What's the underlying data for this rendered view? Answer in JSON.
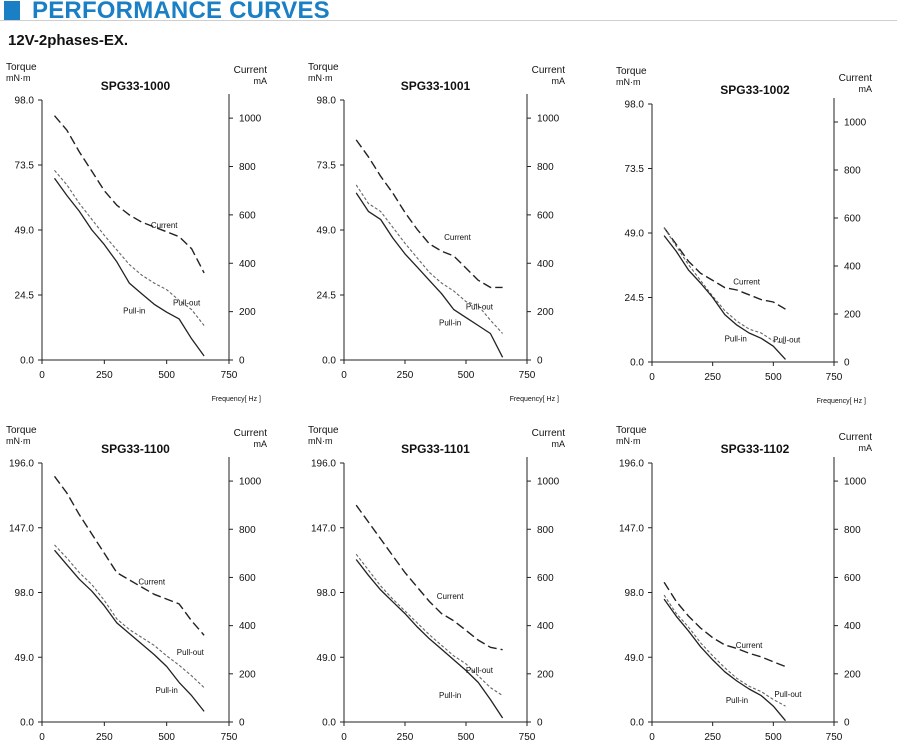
{
  "header": {
    "title": "PERFORMANCE CURVES"
  },
  "subtitle": "12V-2phases-EX.",
  "colors": {
    "accent": "#1a7fc4"
  },
  "chart_data": [
    {
      "type": "line",
      "title": "SPG33-1000",
      "ylabel_left": [
        "Torque",
        "mN·m"
      ],
      "ylabel_right": [
        "Current",
        "mA"
      ],
      "xlabel": "Frequency[ Hz ]",
      "xticks": [
        0,
        250,
        500,
        750
      ],
      "xlim": [
        0,
        750
      ],
      "yticks_left": [
        "0.0",
        "24.5",
        "49.0",
        "73.5",
        "98.0"
      ],
      "ylim_left": [
        0,
        98
      ],
      "yticks_right": [
        0,
        200,
        400,
        600,
        800,
        1000
      ],
      "ylim_right": [
        0,
        1075
      ],
      "series": [
        {
          "name": "Current",
          "axis": "right",
          "style": "dashed",
          "x": [
            50,
            100,
            150,
            200,
            250,
            300,
            350,
            400,
            450,
            500,
            550,
            600,
            650
          ],
          "y": [
            1010,
            950,
            860,
            780,
            700,
            640,
            600,
            570,
            550,
            530,
            510,
            460,
            360
          ]
        },
        {
          "name": "Pull-out",
          "axis": "left",
          "style": "dotted",
          "x": [
            50,
            100,
            150,
            200,
            250,
            300,
            350,
            400,
            450,
            500,
            550,
            600,
            650
          ],
          "y": [
            71.5,
            66,
            59,
            53,
            47,
            41.5,
            36,
            32,
            29,
            26.5,
            22.5,
            19,
            13
          ]
        },
        {
          "name": "Pull-in",
          "axis": "left",
          "style": "solid",
          "x": [
            50,
            100,
            150,
            200,
            250,
            300,
            350,
            400,
            450,
            500,
            550,
            600,
            650
          ],
          "y": [
            68.5,
            62,
            56,
            49,
            43.5,
            37,
            29,
            25,
            21,
            18,
            15.5,
            8,
            1.5
          ]
        }
      ],
      "annotations": [
        {
          "text": "Current",
          "x": 490,
          "y": 49.7
        },
        {
          "text": "Pull-out",
          "x": 580,
          "y": 20.5
        },
        {
          "text": "Pull-in",
          "x": 370,
          "y": 17.5
        }
      ]
    },
    {
      "type": "line",
      "title": "SPG33-1001",
      "ylabel_left": [
        "Torque",
        "mN·m"
      ],
      "ylabel_right": [
        "Current",
        "mA"
      ],
      "xlabel": "Frequency[ Hz ]",
      "xticks": [
        0,
        250,
        500,
        750
      ],
      "xlim": [
        0,
        750
      ],
      "yticks_left": [
        "0.0",
        "24.5",
        "49.0",
        "73.5",
        "98.0"
      ],
      "ylim_left": [
        0,
        98
      ],
      "yticks_right": [
        0,
        200,
        400,
        600,
        800,
        1000
      ],
      "ylim_right": [
        0,
        1075
      ],
      "series": [
        {
          "name": "Current",
          "axis": "right",
          "style": "dashed",
          "x": [
            50,
            100,
            150,
            200,
            250,
            300,
            350,
            400,
            450,
            500,
            550,
            600,
            650
          ],
          "y": [
            910,
            840,
            760,
            690,
            610,
            540,
            480,
            450,
            430,
            380,
            330,
            300,
            300
          ]
        },
        {
          "name": "Pull-out",
          "axis": "left",
          "style": "dotted",
          "x": [
            50,
            100,
            150,
            200,
            250,
            300,
            350,
            400,
            450,
            500,
            550,
            600,
            650
          ],
          "y": [
            66,
            59,
            56,
            50,
            44,
            38.5,
            33,
            29,
            26,
            22,
            20.5,
            15,
            10
          ]
        },
        {
          "name": "Pull-in",
          "axis": "left",
          "style": "solid",
          "x": [
            50,
            100,
            150,
            200,
            250,
            300,
            350,
            400,
            450,
            500,
            550,
            600,
            650
          ],
          "y": [
            63,
            56,
            53,
            46,
            40,
            35,
            30,
            25,
            19,
            16,
            13,
            10,
            1
          ]
        }
      ],
      "annotations": [
        {
          "text": "Current",
          "x": 465,
          "y": 45.2
        },
        {
          "text": "Pull-out",
          "x": 555,
          "y": 19
        },
        {
          "text": "Pull-in",
          "x": 435,
          "y": 13
        }
      ]
    },
    {
      "type": "line",
      "title": "SPG33-1002",
      "ylabel_left": [
        "Torque",
        "mN·m"
      ],
      "ylabel_right": [
        "Current",
        "mA"
      ],
      "xlabel": "Frequency[ Hz ]",
      "xticks": [
        0,
        250,
        500,
        750
      ],
      "xlim": [
        0,
        750
      ],
      "yticks_left": [
        "0.0",
        "24.5",
        "49.0",
        "73.5",
        "98.0"
      ],
      "ylim_left": [
        0,
        98
      ],
      "yticks_right": [
        0,
        200,
        400,
        600,
        800,
        1000
      ],
      "ylim_right": [
        0,
        1075
      ],
      "series": [
        {
          "name": "Current",
          "axis": "right",
          "style": "dashed",
          "x": [
            50,
            100,
            150,
            200,
            250,
            300,
            350,
            400,
            450,
            500,
            550
          ],
          "y": [
            560,
            490,
            420,
            370,
            340,
            310,
            300,
            280,
            260,
            250,
            220
          ]
        },
        {
          "name": "Pull-out",
          "axis": "left",
          "style": "dotted",
          "x": [
            50,
            100,
            150,
            200,
            250,
            300,
            350,
            400,
            450,
            500,
            550
          ],
          "y": [
            51,
            44,
            37,
            31,
            25,
            19.5,
            15.5,
            12.5,
            11,
            8,
            7
          ]
        },
        {
          "name": "Pull-in",
          "axis": "left",
          "style": "solid",
          "x": [
            50,
            100,
            150,
            200,
            250,
            300,
            350,
            400,
            450,
            500,
            550
          ],
          "y": [
            48,
            42,
            35,
            30,
            24.5,
            18,
            14,
            11,
            9,
            6,
            1
          ]
        }
      ],
      "annotations": [
        {
          "text": "Current",
          "x": 390,
          "y": 29.5
        },
        {
          "text": "Pull-out",
          "x": 555,
          "y": 7.5
        },
        {
          "text": "Pull-in",
          "x": 345,
          "y": 7.8
        }
      ]
    },
    {
      "type": "line",
      "title": "SPG33-1100",
      "ylabel_left": [
        "Torque",
        "mN·m"
      ],
      "ylabel_right": [
        "Current",
        "mA"
      ],
      "xlabel": "",
      "xticks": [
        0,
        250,
        500,
        750
      ],
      "xlim": [
        0,
        750
      ],
      "yticks_left": [
        "0.0",
        "49.0",
        "98.0",
        "147.0",
        "196.0"
      ],
      "ylim_left": [
        0,
        196
      ],
      "yticks_right": [
        0,
        200,
        400,
        600,
        800,
        1000
      ],
      "ylim_right": [
        0,
        1075
      ],
      "series": [
        {
          "name": "Current",
          "axis": "right",
          "style": "dashed",
          "x": [
            50,
            100,
            150,
            200,
            250,
            300,
            350,
            400,
            450,
            500,
            550,
            600,
            650
          ],
          "y": [
            1020,
            950,
            860,
            780,
            700,
            620,
            590,
            560,
            530,
            510,
            490,
            420,
            360
          ]
        },
        {
          "name": "Pull-out",
          "axis": "left",
          "style": "dotted",
          "x": [
            50,
            100,
            150,
            200,
            250,
            300,
            350,
            400,
            450,
            500,
            550,
            600,
            650
          ],
          "y": [
            134,
            124,
            113,
            104,
            92,
            78,
            70,
            64,
            58,
            50,
            43,
            35,
            26
          ]
        },
        {
          "name": "Pull-in",
          "axis": "left",
          "style": "solid",
          "x": [
            50,
            100,
            150,
            200,
            250,
            300,
            350,
            400,
            450,
            500,
            550,
            600,
            650
          ],
          "y": [
            130,
            119,
            108,
            99,
            88,
            75,
            67,
            59,
            51,
            42,
            30,
            20,
            8
          ]
        }
      ],
      "annotations": [
        {
          "text": "Current",
          "x": 440,
          "y": 104
        },
        {
          "text": "Pull-out",
          "x": 595,
          "y": 50.7
        },
        {
          "text": "Pull-in",
          "x": 500,
          "y": 22
        }
      ]
    },
    {
      "type": "line",
      "title": "SPG33-1101",
      "ylabel_left": [
        "Torque",
        "mN·m"
      ],
      "ylabel_right": [
        "Current",
        "mA"
      ],
      "xlabel": "",
      "xticks": [
        0,
        250,
        500,
        750
      ],
      "xlim": [
        0,
        750
      ],
      "yticks_left": [
        "0.0",
        "49.0",
        "98.0",
        "147.0",
        "196.0"
      ],
      "ylim_left": [
        0,
        196
      ],
      "yticks_right": [
        0,
        200,
        400,
        600,
        800,
        1000
      ],
      "ylim_right": [
        0,
        1075
      ],
      "series": [
        {
          "name": "Current",
          "axis": "right",
          "style": "dashed",
          "x": [
            50,
            100,
            150,
            200,
            250,
            300,
            350,
            400,
            450,
            500,
            550,
            600,
            650
          ],
          "y": [
            900,
            830,
            760,
            690,
            620,
            560,
            500,
            450,
            420,
            380,
            340,
            310,
            300
          ]
        },
        {
          "name": "Pull-out",
          "axis": "left",
          "style": "dotted",
          "x": [
            50,
            100,
            150,
            200,
            250,
            300,
            350,
            400,
            450,
            500,
            550,
            600,
            650
          ],
          "y": [
            127,
            115,
            103,
            93,
            84,
            75,
            66,
            58,
            50,
            44,
            35,
            26,
            20
          ]
        },
        {
          "name": "Pull-in",
          "axis": "left",
          "style": "solid",
          "x": [
            50,
            100,
            150,
            200,
            250,
            300,
            350,
            400,
            450,
            500,
            550,
            600,
            650
          ],
          "y": [
            123,
            111,
            100,
            91,
            82,
            72,
            63,
            55,
            47,
            39,
            30,
            17,
            3
          ]
        }
      ],
      "annotations": [
        {
          "text": "Current",
          "x": 435,
          "y": 93
        },
        {
          "text": "Pull-out",
          "x": 555,
          "y": 37
        },
        {
          "text": "Pull-in",
          "x": 435,
          "y": 18
        }
      ]
    },
    {
      "type": "line",
      "title": "SPG33-1102",
      "ylabel_left": [
        "Torque",
        "mN·m"
      ],
      "ylabel_right": [
        "Current",
        "mA"
      ],
      "xlabel": "",
      "xticks": [
        0,
        250,
        500,
        750
      ],
      "xlim": [
        0,
        750
      ],
      "yticks_left": [
        "0.0",
        "49.0",
        "98.0",
        "147.0",
        "196.0"
      ],
      "ylim_left": [
        0,
        196
      ],
      "yticks_right": [
        0,
        200,
        400,
        600,
        800,
        1000
      ],
      "ylim_right": [
        0,
        1075
      ],
      "series": [
        {
          "name": "Current",
          "axis": "right",
          "style": "dashed",
          "x": [
            50,
            100,
            150,
            200,
            250,
            300,
            350,
            400,
            450,
            500,
            550
          ],
          "y": [
            580,
            500,
            440,
            390,
            350,
            320,
            305,
            285,
            270,
            250,
            230
          ]
        },
        {
          "name": "Pull-out",
          "axis": "left",
          "style": "dotted",
          "x": [
            50,
            100,
            150,
            200,
            250,
            300,
            350,
            400,
            450,
            500,
            550
          ],
          "y": [
            96,
            82,
            72,
            60,
            50,
            41,
            33,
            27,
            23,
            17,
            12
          ]
        },
        {
          "name": "Pull-in",
          "axis": "left",
          "style": "solid",
          "x": [
            50,
            100,
            150,
            200,
            250,
            300,
            350,
            400,
            450,
            500,
            550
          ],
          "y": [
            93,
            80,
            69,
            57,
            47,
            38,
            31,
            25,
            20,
            12,
            1
          ]
        }
      ],
      "annotations": [
        {
          "text": "Current",
          "x": 400,
          "y": 56
        },
        {
          "text": "Pull-out",
          "x": 560,
          "y": 19
        },
        {
          "text": "Pull-in",
          "x": 350,
          "y": 14.5
        }
      ]
    }
  ]
}
